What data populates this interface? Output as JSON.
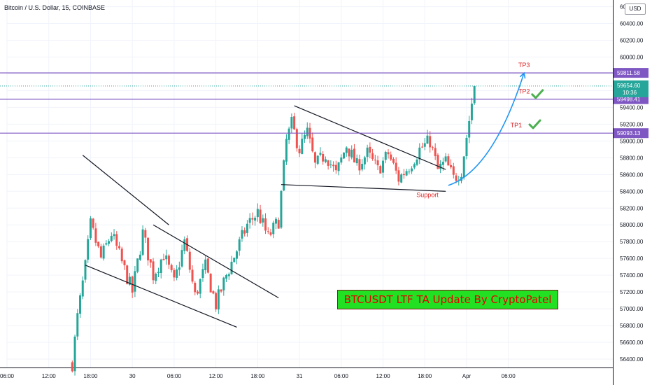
{
  "header": {
    "symbol": "Bitcoin / U.S. Dollar, 15, COINBASE",
    "currency": "USD"
  },
  "banner": {
    "text": "BTCUSDT LTF TA Update By CryptoPatel"
  },
  "colors": {
    "bull": "#26a69a",
    "bear": "#ef5350",
    "level": "#7e57c2",
    "trend": "#131722",
    "arrow": "#2196f3",
    "ann": "#e02424",
    "check": "#4caf50",
    "grid": "#f0f3fa"
  },
  "chart_data": {
    "type": "candlestick",
    "symbol": "BTCUSD",
    "timeframe": "15",
    "exchange": "COINBASE",
    "ylim": [
      56300,
      60680
    ],
    "y_ticks": [
      56400,
      56600,
      56800,
      57000,
      57200,
      57400,
      57600,
      57800,
      58000,
      58200,
      58400,
      58600,
      58800,
      59000,
      59200,
      59400,
      59600,
      59800,
      60000,
      60200,
      60400,
      60600
    ],
    "y_tick_labels": [
      "56400.00",
      "56600.00",
      "56800.00",
      "57000.00",
      "57200.00",
      "57400.00",
      "57600.00",
      "57800.00",
      "58000.00",
      "58200.00",
      "58400.00",
      "58600.00",
      "58800.00",
      "59000.00",
      "59200.00",
      "59400.00",
      "59600.00",
      "59800.00",
      "60000.00",
      "60200.00",
      "60400.00",
      "60600.00"
    ],
    "x_range": [
      0,
      116
    ],
    "x_ticks": [
      {
        "pos": 0,
        "label": "06:00"
      },
      {
        "pos": 8,
        "label": "12:00"
      },
      {
        "pos": 16,
        "label": "18:00"
      },
      {
        "pos": 24,
        "label": "30"
      },
      {
        "pos": 32,
        "label": "06:00"
      },
      {
        "pos": 40,
        "label": "12:00"
      },
      {
        "pos": 48,
        "label": "18:00"
      },
      {
        "pos": 56,
        "label": "31"
      },
      {
        "pos": 64,
        "label": "06:00"
      },
      {
        "pos": 72,
        "label": "12:00"
      },
      {
        "pos": 80,
        "label": "18:00"
      },
      {
        "pos": 88,
        "label": "Apr"
      },
      {
        "pos": 96,
        "label": "06:00"
      }
    ],
    "price_anchors": [
      [
        12.5,
        56350
      ],
      [
        13.5,
        56900
      ],
      [
        15,
        57500
      ],
      [
        16,
        58000
      ],
      [
        18,
        57600
      ],
      [
        20,
        57900
      ],
      [
        22,
        57550
      ],
      [
        24,
        57200
      ],
      [
        26,
        57900
      ],
      [
        28,
        57400
      ],
      [
        30,
        57650
      ],
      [
        32,
        57300
      ],
      [
        34,
        57800
      ],
      [
        36,
        57150
      ],
      [
        38,
        57500
      ],
      [
        40,
        57050
      ],
      [
        42,
        57400
      ],
      [
        44,
        57700
      ],
      [
        46,
        58000
      ],
      [
        48,
        58150
      ],
      [
        50,
        57850
      ],
      [
        52,
        58050
      ],
      [
        53.5,
        59000
      ],
      [
        54.5,
        59200
      ],
      [
        56,
        58900
      ],
      [
        57.5,
        59100
      ],
      [
        59,
        58700
      ],
      [
        61,
        58850
      ],
      [
        63,
        58600
      ],
      [
        65,
        58950
      ],
      [
        67,
        58700
      ],
      [
        69,
        58850
      ],
      [
        71,
        58650
      ],
      [
        73,
        58850
      ],
      [
        75,
        58550
      ],
      [
        77,
        58700
      ],
      [
        79,
        58900
      ],
      [
        81,
        59000
      ],
      [
        82.5,
        58650
      ],
      [
        84,
        58750
      ],
      [
        85.5,
        58550
      ],
      [
        87,
        58650
      ],
      [
        88.5,
        59250
      ],
      [
        89.5,
        59654.6
      ]
    ],
    "candle_seed": 7,
    "current_price": {
      "value": 59654.6,
      "label": "59654.60",
      "countdown": "10:36"
    },
    "levels": [
      {
        "name": "TP3",
        "price": 59811.58,
        "label": "59811.58",
        "marker_x": 99
      },
      {
        "name": "TP2",
        "price": 59498.41,
        "label": "59498.41",
        "marker_x": 99
      },
      {
        "name": "TP1",
        "price": 59093.13,
        "label": "59093.13",
        "marker_x": 97.5
      }
    ],
    "trendlines": [
      {
        "from": [
          14.5,
          58830
        ],
        "to": [
          31,
          58000
        ]
      },
      {
        "from": [
          15,
          57520
        ],
        "to": [
          44,
          56780
        ]
      },
      {
        "from": [
          28,
          58000
        ],
        "to": [
          52,
          57130
        ]
      },
      {
        "from": [
          55,
          59420
        ],
        "to": [
          84,
          58660
        ]
      },
      {
        "from": [
          52.5,
          58480
        ],
        "to": [
          84,
          58400
        ]
      }
    ],
    "projection": {
      "from": [
        84.5,
        58470
      ],
      "control": [
        93,
        58650
      ],
      "to": [
        99,
        59810
      ]
    },
    "support_label": {
      "text": "Support",
      "at": [
        80.5,
        58330
      ]
    },
    "checkmarks": [
      {
        "at": [
          101.5,
          59555
        ]
      },
      {
        "at": [
          101,
          59195
        ]
      }
    ]
  }
}
